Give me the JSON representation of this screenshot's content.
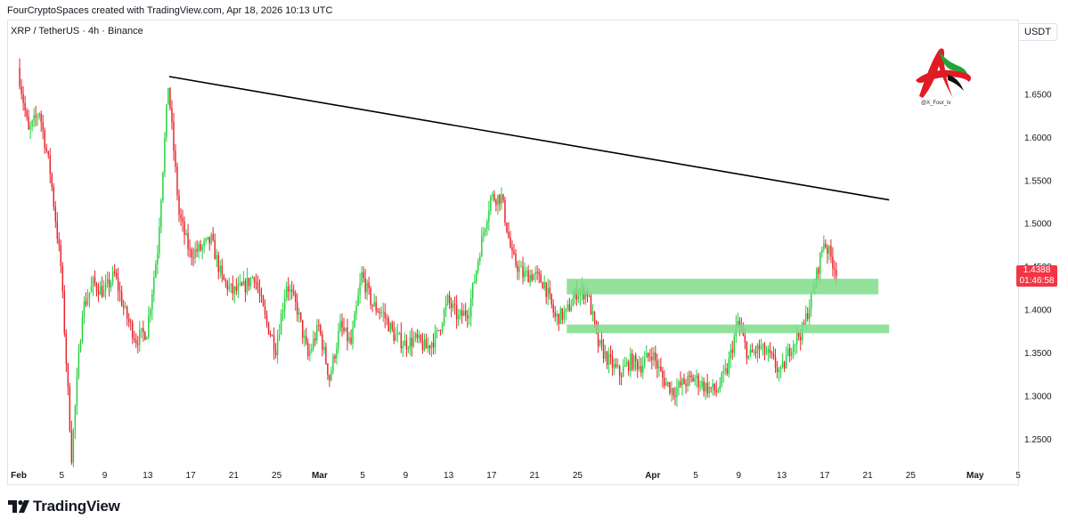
{
  "credit": "FourCryptoSpaces created with TradingView.com, Apr 18, 2026 10:13 UTC",
  "symbol": "XRP / TetherUS · 4h · Binance",
  "currency_button": "USDT",
  "price_tag": {
    "price": "1.4388",
    "countdown": "01:46:58"
  },
  "logo": {
    "icon": "red-green-a-logo-icon",
    "handle": "@X_Four_iv"
  },
  "brand": {
    "icon": "tradingview-logo-icon",
    "name": "TradingView"
  },
  "colors": {
    "up": "#22d13d",
    "down": "#e8222b",
    "zone": "#7fdc8a",
    "trendline": "#000000",
    "price_tag": "#f23645"
  },
  "chart_data": {
    "type": "candlestick",
    "ylim": [
      1.22,
      1.735
    ],
    "x_range": [
      "2026-01-31",
      "2026-05-05"
    ],
    "y_ticks": [
      "1.6500",
      "1.6000",
      "1.5500",
      "1.5000",
      "1.4500",
      "1.4000",
      "1.3500",
      "1.3000",
      "1.2500"
    ],
    "x_ticks": [
      {
        "date": "2026-02-01",
        "label": "Feb"
      },
      {
        "date": "2026-02-05",
        "label": "5"
      },
      {
        "date": "2026-02-09",
        "label": "9"
      },
      {
        "date": "2026-02-13",
        "label": "13"
      },
      {
        "date": "2026-02-17",
        "label": "17"
      },
      {
        "date": "2026-02-21",
        "label": "21"
      },
      {
        "date": "2026-02-25",
        "label": "25"
      },
      {
        "date": "2026-03-01",
        "label": "Mar"
      },
      {
        "date": "2026-03-05",
        "label": "5"
      },
      {
        "date": "2026-03-09",
        "label": "9"
      },
      {
        "date": "2026-03-13",
        "label": "13"
      },
      {
        "date": "2026-03-17",
        "label": "17"
      },
      {
        "date": "2026-03-21",
        "label": "21"
      },
      {
        "date": "2026-03-25",
        "label": "25"
      },
      {
        "date": "2026-04-01",
        "label": "Apr"
      },
      {
        "date": "2026-04-05",
        "label": "5"
      },
      {
        "date": "2026-04-09",
        "label": "9"
      },
      {
        "date": "2026-04-13",
        "label": "13"
      },
      {
        "date": "2026-04-17",
        "label": "17"
      },
      {
        "date": "2026-04-21",
        "label": "21"
      },
      {
        "date": "2026-04-25",
        "label": "25"
      },
      {
        "date": "2026-05-01",
        "label": "May"
      },
      {
        "date": "2026-05-05",
        "label": "5"
      }
    ],
    "price_path": [
      [
        "2026-02-01",
        1.68
      ],
      [
        "2026-02-02",
        1.605
      ],
      [
        "2026-02-03",
        1.63
      ],
      [
        "2026-02-04",
        1.56
      ],
      [
        "2026-02-05",
        1.45
      ],
      [
        "2026-02-06",
        1.23
      ],
      [
        "2026-02-07",
        1.4
      ],
      [
        "2026-02-08",
        1.43
      ],
      [
        "2026-02-09",
        1.42
      ],
      [
        "2026-02-10",
        1.44
      ],
      [
        "2026-02-11",
        1.395
      ],
      [
        "2026-02-12",
        1.365
      ],
      [
        "2026-02-13",
        1.375
      ],
      [
        "2026-02-14",
        1.47
      ],
      [
        "2026-02-15",
        1.66
      ],
      [
        "2026-02-16",
        1.51
      ],
      [
        "2026-02-17",
        1.465
      ],
      [
        "2026-02-18",
        1.47
      ],
      [
        "2026-02-19",
        1.48
      ],
      [
        "2026-02-20",
        1.435
      ],
      [
        "2026-02-21",
        1.42
      ],
      [
        "2026-02-22",
        1.425
      ],
      [
        "2026-02-23",
        1.44
      ],
      [
        "2026-02-24",
        1.39
      ],
      [
        "2026-02-25",
        1.355
      ],
      [
        "2026-02-26",
        1.43
      ],
      [
        "2026-02-27",
        1.4
      ],
      [
        "2026-02-28",
        1.345
      ],
      [
        "2026-03-01",
        1.38
      ],
      [
        "2026-03-02",
        1.32
      ],
      [
        "2026-03-03",
        1.38
      ],
      [
        "2026-03-04",
        1.36
      ],
      [
        "2026-03-05",
        1.44
      ],
      [
        "2026-03-06",
        1.405
      ],
      [
        "2026-03-07",
        1.395
      ],
      [
        "2026-03-08",
        1.37
      ],
      [
        "2026-03-09",
        1.36
      ],
      [
        "2026-03-10",
        1.365
      ],
      [
        "2026-03-11",
        1.355
      ],
      [
        "2026-03-12",
        1.37
      ],
      [
        "2026-03-13",
        1.41
      ],
      [
        "2026-03-14",
        1.39
      ],
      [
        "2026-03-15",
        1.4
      ],
      [
        "2026-03-16",
        1.47
      ],
      [
        "2026-03-17",
        1.53
      ],
      [
        "2026-03-18",
        1.53
      ],
      [
        "2026-03-19",
        1.46
      ],
      [
        "2026-03-20",
        1.44
      ],
      [
        "2026-03-21",
        1.44
      ],
      [
        "2026-03-22",
        1.43
      ],
      [
        "2026-03-23",
        1.39
      ],
      [
        "2026-03-24",
        1.395
      ],
      [
        "2026-03-25",
        1.42
      ],
      [
        "2026-03-26",
        1.42
      ],
      [
        "2026-03-27",
        1.36
      ],
      [
        "2026-03-28",
        1.34
      ],
      [
        "2026-03-29",
        1.325
      ],
      [
        "2026-03-30",
        1.34
      ],
      [
        "2026-03-31",
        1.335
      ],
      [
        "2026-04-01",
        1.35
      ],
      [
        "2026-04-02",
        1.32
      ],
      [
        "2026-04-03",
        1.305
      ],
      [
        "2026-04-04",
        1.315
      ],
      [
        "2026-04-05",
        1.32
      ],
      [
        "2026-04-06",
        1.31
      ],
      [
        "2026-04-07",
        1.305
      ],
      [
        "2026-04-08",
        1.33
      ],
      [
        "2026-04-09",
        1.385
      ],
      [
        "2026-04-10",
        1.345
      ],
      [
        "2026-04-11",
        1.355
      ],
      [
        "2026-04-12",
        1.345
      ],
      [
        "2026-04-13",
        1.325
      ],
      [
        "2026-04-14",
        1.36
      ],
      [
        "2026-04-15",
        1.375
      ],
      [
        "2026-04-16",
        1.42
      ],
      [
        "2026-04-17",
        1.48
      ],
      [
        "2026-04-18",
        1.45
      ]
    ],
    "trendline": [
      [
        "2026-02-15",
        1.67
      ],
      [
        "2026-04-23",
        1.527
      ]
    ],
    "zones": [
      {
        "start": "2026-03-24",
        "end": "2026-04-22",
        "low": 1.4175,
        "high": 1.4355
      },
      {
        "start": "2026-03-24",
        "end": "2026-04-23",
        "low": 1.3725,
        "high": 1.3825
      }
    ],
    "last_price": 1.4388
  }
}
